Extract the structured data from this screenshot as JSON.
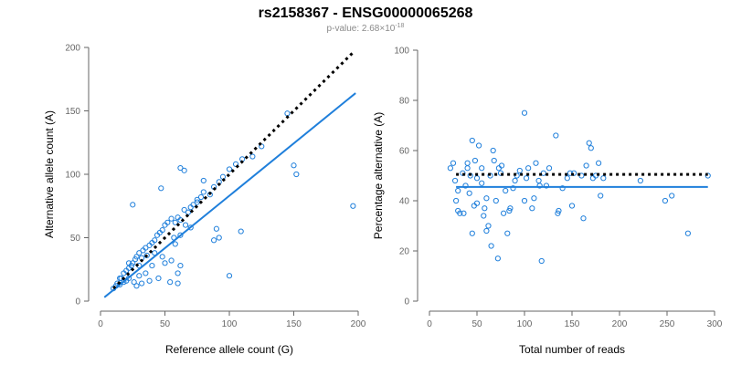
{
  "title": "rs2158367 - ENSG00000065268",
  "subtitle": {
    "prefix": "p-value: 2.68×10",
    "exponent": "-18"
  },
  "colors": {
    "points": "#1f7fdb",
    "fit_line": "#1f7fdb",
    "reference_line": "#000000",
    "axis": "#666666"
  },
  "chart_data": [
    {
      "type": "scatter",
      "xlabel": "Reference allele count (G)",
      "ylabel": "Alternative allele count (A)",
      "xlim": [
        0,
        200
      ],
      "ylim": [
        0,
        200
      ],
      "xticks": [
        0,
        50,
        100,
        150,
        200
      ],
      "yticks": [
        0,
        50,
        100,
        150,
        200
      ],
      "reference_line": {
        "style": "dotted",
        "x": [
          10,
          197
        ],
        "y": [
          10,
          197
        ]
      },
      "fit_line": {
        "style": "solid",
        "x": [
          3,
          198
        ],
        "y": [
          3,
          164
        ]
      },
      "points": [
        [
          10,
          10
        ],
        [
          12,
          12
        ],
        [
          13,
          14
        ],
        [
          15,
          13
        ],
        [
          16,
          18
        ],
        [
          18,
          22
        ],
        [
          20,
          24
        ],
        [
          22,
          26
        ],
        [
          24,
          28
        ],
        [
          25,
          30
        ],
        [
          27,
          33
        ],
        [
          28,
          35
        ],
        [
          30,
          38
        ],
        [
          32,
          34
        ],
        [
          33,
          40
        ],
        [
          35,
          42
        ],
        [
          36,
          36
        ],
        [
          38,
          44
        ],
        [
          40,
          46
        ],
        [
          42,
          48
        ],
        [
          44,
          52
        ],
        [
          46,
          54
        ],
        [
          48,
          56
        ],
        [
          50,
          60
        ],
        [
          52,
          62
        ],
        [
          55,
          65
        ],
        [
          58,
          62
        ],
        [
          60,
          66
        ],
        [
          62,
          64
        ],
        [
          65,
          72
        ],
        [
          68,
          70
        ],
        [
          70,
          74
        ],
        [
          72,
          76
        ],
        [
          75,
          80
        ],
        [
          78,
          82
        ],
        [
          80,
          86
        ],
        [
          85,
          84
        ],
        [
          88,
          90
        ],
        [
          92,
          94
        ],
        [
          95,
          98
        ],
        [
          100,
          104
        ],
        [
          105,
          108
        ],
        [
          110,
          112
        ],
        [
          118,
          114
        ],
        [
          125,
          122
        ],
        [
          145,
          148
        ],
        [
          150,
          107
        ],
        [
          152,
          100
        ],
        [
          62,
          105
        ],
        [
          65,
          103
        ],
        [
          47,
          89
        ],
        [
          25,
          76
        ],
        [
          100,
          20
        ],
        [
          90,
          57
        ],
        [
          109,
          55
        ],
        [
          88,
          48
        ],
        [
          92,
          50
        ],
        [
          60,
          14
        ],
        [
          54,
          15
        ],
        [
          45,
          18
        ],
        [
          40,
          28
        ],
        [
          35,
          22
        ],
        [
          30,
          20
        ],
        [
          22,
          18
        ],
        [
          20,
          16
        ],
        [
          26,
          15
        ],
        [
          15,
          18
        ],
        [
          18,
          15
        ],
        [
          28,
          12
        ],
        [
          32,
          14
        ],
        [
          50,
          30
        ],
        [
          55,
          32
        ],
        [
          48,
          35
        ],
        [
          42,
          38
        ],
        [
          30,
          28
        ],
        [
          22,
          30
        ],
        [
          38,
          16
        ],
        [
          66,
          60
        ],
        [
          62,
          52
        ],
        [
          70,
          58
        ],
        [
          75,
          78
        ],
        [
          58,
          45
        ],
        [
          62,
          28
        ],
        [
          60,
          22
        ],
        [
          196,
          75
        ],
        [
          80,
          95
        ],
        [
          57,
          50
        ]
      ]
    },
    {
      "type": "scatter",
      "xlabel": "Total number of reads",
      "ylabel": "Percentage alternative (A)",
      "xlim": [
        0,
        300
      ],
      "ylim": [
        0,
        100
      ],
      "xticks": [
        0,
        50,
        100,
        150,
        200,
        250,
        300
      ],
      "yticks": [
        0,
        20,
        40,
        60,
        80,
        100
      ],
      "reference_line": {
        "style": "dotted",
        "x": [
          28,
          293
        ],
        "y": [
          50.5,
          50.5
        ]
      },
      "fit_line": {
        "style": "solid",
        "x": [
          28,
          293
        ],
        "y": [
          45.5,
          45.5
        ]
      },
      "points": [
        [
          22,
          53
        ],
        [
          25,
          55
        ],
        [
          27,
          48
        ],
        [
          28,
          40
        ],
        [
          30,
          44
        ],
        [
          30,
          36
        ],
        [
          32,
          35
        ],
        [
          35,
          51
        ],
        [
          36,
          35
        ],
        [
          38,
          46
        ],
        [
          40,
          55
        ],
        [
          40,
          53
        ],
        [
          42,
          43
        ],
        [
          43,
          50
        ],
        [
          45,
          64
        ],
        [
          45,
          27
        ],
        [
          47,
          38
        ],
        [
          48,
          56
        ],
        [
          50,
          49
        ],
        [
          50,
          39
        ],
        [
          52,
          62
        ],
        [
          55,
          53
        ],
        [
          55,
          47
        ],
        [
          57,
          34
        ],
        [
          58,
          37
        ],
        [
          60,
          28
        ],
        [
          60,
          41
        ],
        [
          62,
          30
        ],
        [
          64,
          50
        ],
        [
          65,
          22
        ],
        [
          67,
          60
        ],
        [
          68,
          56
        ],
        [
          70,
          40
        ],
        [
          72,
          17
        ],
        [
          73,
          53
        ],
        [
          75,
          51
        ],
        [
          76,
          54
        ],
        [
          78,
          35
        ],
        [
          80,
          44
        ],
        [
          82,
          27
        ],
        [
          84,
          36
        ],
        [
          85,
          37
        ],
        [
          88,
          45
        ],
        [
          90,
          48
        ],
        [
          92,
          50
        ],
        [
          95,
          52
        ],
        [
          100,
          75
        ],
        [
          100,
          40
        ],
        [
          102,
          49
        ],
        [
          104,
          53
        ],
        [
          108,
          37
        ],
        [
          110,
          41
        ],
        [
          112,
          55
        ],
        [
          115,
          48
        ],
        [
          116,
          46
        ],
        [
          118,
          16
        ],
        [
          120,
          51
        ],
        [
          123,
          46
        ],
        [
          126,
          53
        ],
        [
          133,
          66
        ],
        [
          135,
          35
        ],
        [
          136,
          36
        ],
        [
          140,
          45
        ],
        [
          145,
          49
        ],
        [
          148,
          51
        ],
        [
          150,
          38
        ],
        [
          152,
          51
        ],
        [
          160,
          50
        ],
        [
          162,
          33
        ],
        [
          165,
          54
        ],
        [
          168,
          63
        ],
        [
          170,
          61
        ],
        [
          172,
          49
        ],
        [
          175,
          50
        ],
        [
          178,
          55
        ],
        [
          180,
          42
        ],
        [
          183,
          49
        ],
        [
          222,
          48
        ],
        [
          248,
          40
        ],
        [
          255,
          42
        ],
        [
          272,
          27
        ],
        [
          293,
          50
        ]
      ]
    }
  ]
}
